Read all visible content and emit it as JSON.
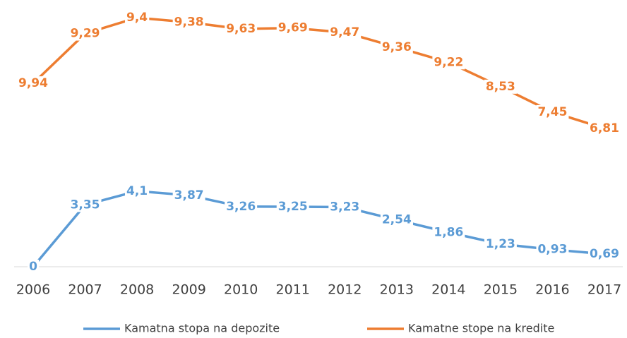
{
  "chart_data": {
    "type": "line",
    "stacked": true,
    "categories": [
      "2006",
      "2007",
      "2008",
      "2009",
      "2010",
      "2011",
      "2012",
      "2013",
      "2014",
      "2015",
      "2016",
      "2017"
    ],
    "series": [
      {
        "name": "Kamatna stopa na depozite",
        "color": "#5b9bd5",
        "values": [
          0,
          3.35,
          4.1,
          3.87,
          3.26,
          3.25,
          3.23,
          2.54,
          1.86,
          1.23,
          0.93,
          0.69
        ],
        "value_labels": [
          "0",
          "3,35",
          "4,1",
          "3,87",
          "3,26",
          "3,25",
          "3,23",
          "2,54",
          "1,86",
          "1,23",
          "0,93",
          "0,69"
        ]
      },
      {
        "name": "Kamatne stope na kredite",
        "color": "#ed7d31",
        "values": [
          9.94,
          9.29,
          9.4,
          9.38,
          9.63,
          9.69,
          9.47,
          9.36,
          9.22,
          8.53,
          7.45,
          6.81
        ],
        "value_labels": [
          "9,94",
          "9,29",
          "9,4",
          "9,38",
          "9,63",
          "9,69",
          "9,47",
          "9,36",
          "9,22",
          "8,53",
          "7,45",
          "6,81"
        ]
      }
    ],
    "ylim": [
      0,
      14
    ],
    "legend": "bottom"
  }
}
